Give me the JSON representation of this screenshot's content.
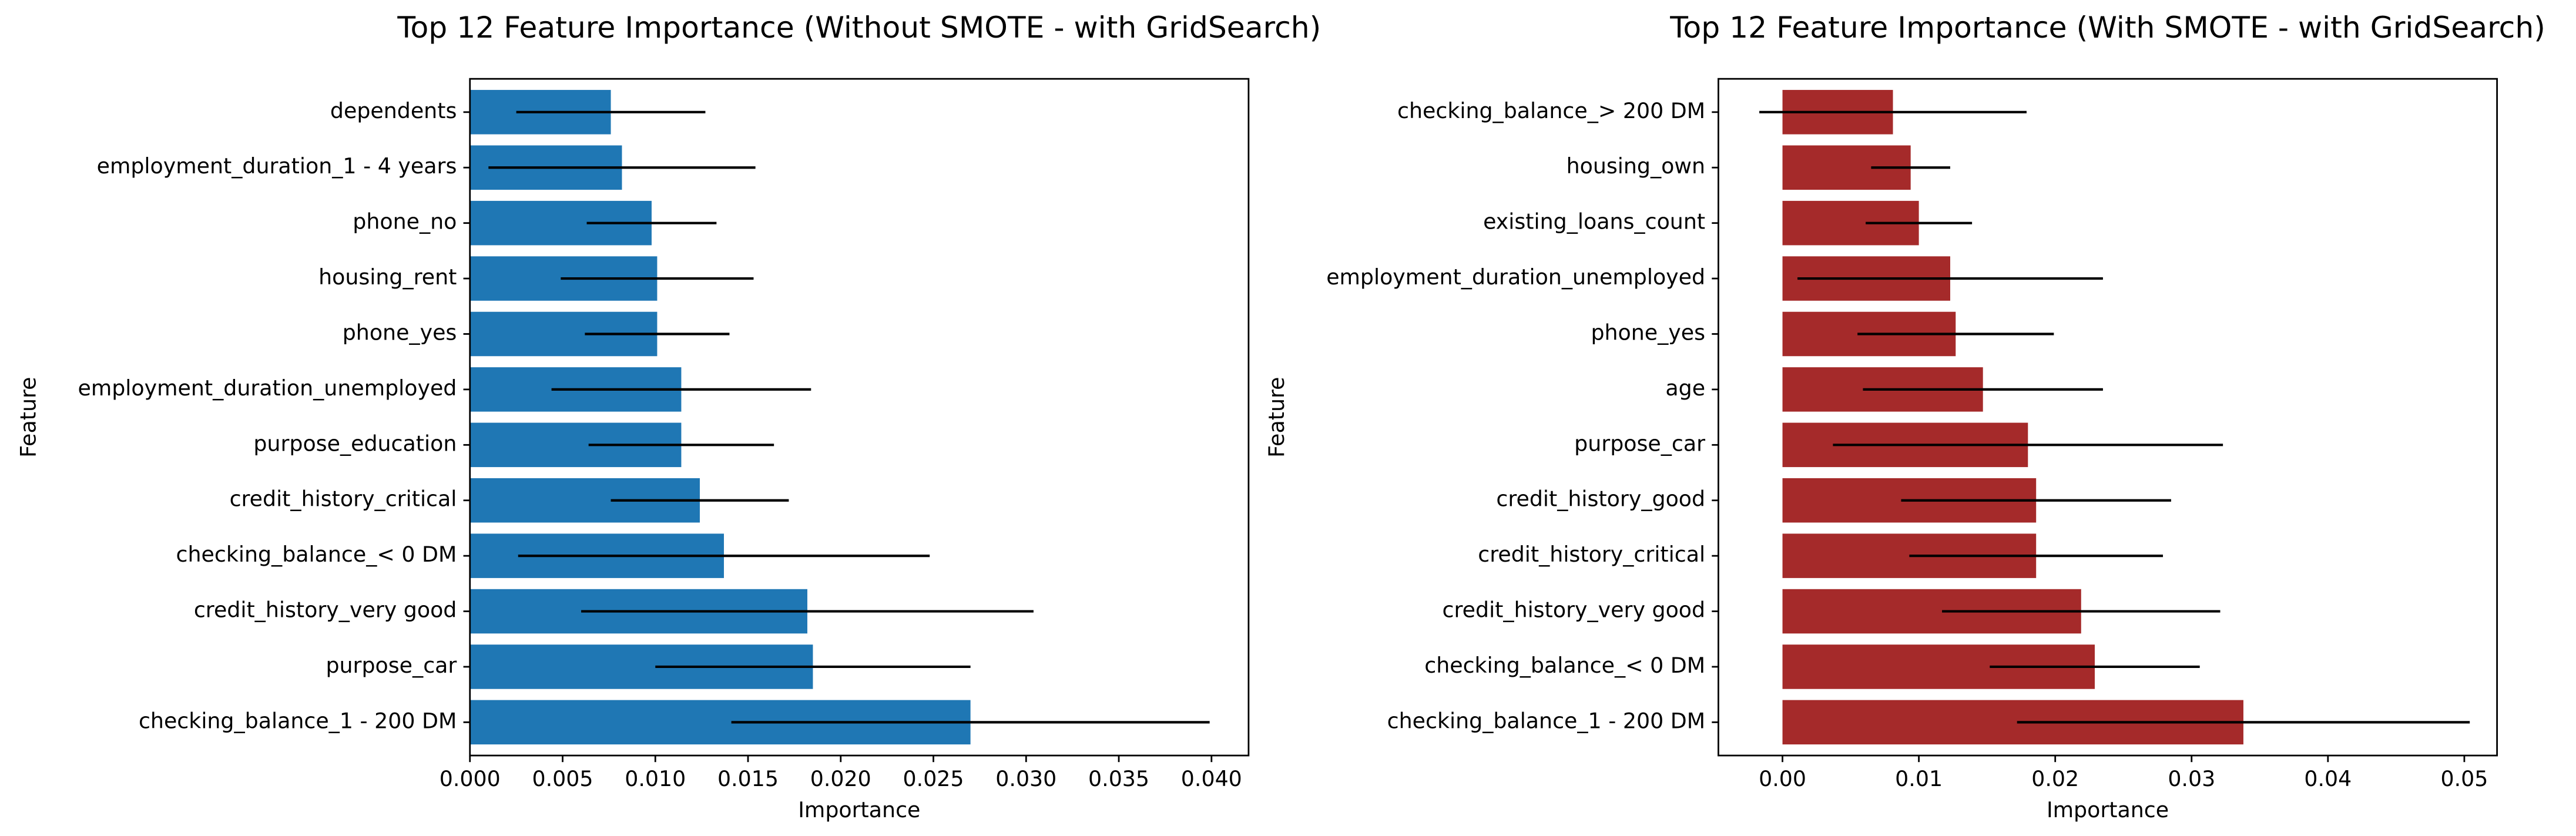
{
  "chart_data": [
    {
      "type": "barh",
      "title": "Top 12 Feature Importance (Without SMOTE - with GridSearch)",
      "xlabel": "Importance",
      "ylabel": "Feature",
      "categories": [
        "dependents",
        "employment_duration_1 - 4 years",
        "phone_no",
        "housing_rent",
        "phone_yes",
        "employment_duration_unemployed",
        "purpose_education",
        "credit_history_critical",
        "checking_balance_< 0 DM",
        "credit_history_very good",
        "purpose_car",
        "checking_balance_1 - 200 DM"
      ],
      "values": [
        0.0076,
        0.0082,
        0.0098,
        0.0101,
        0.0101,
        0.0114,
        0.0114,
        0.0124,
        0.0137,
        0.0182,
        0.0185,
        0.027
      ],
      "errors": [
        0.0051,
        0.0072,
        0.0035,
        0.0052,
        0.0039,
        0.007,
        0.005,
        0.0048,
        0.0111,
        0.0122,
        0.0085,
        0.0129
      ],
      "color": "#1f77b4",
      "xlim": [
        0,
        0.042
      ],
      "xticks": [
        {
          "value": 0,
          "label": "0.000"
        },
        {
          "value": 0.005,
          "label": "0.005"
        },
        {
          "value": 0.01,
          "label": "0.010"
        },
        {
          "value": 0.015,
          "label": "0.015"
        },
        {
          "value": 0.02,
          "label": "0.020"
        },
        {
          "value": 0.025,
          "label": "0.025"
        },
        {
          "value": 0.03,
          "label": "0.030"
        },
        {
          "value": 0.035,
          "label": "0.035"
        },
        {
          "value": 0.04,
          "label": "0.040"
        }
      ]
    },
    {
      "type": "barh",
      "title": "Top 12 Feature Importance (With SMOTE - with GridSearch)",
      "xlabel": "Importance",
      "ylabel": "Feature",
      "categories": [
        "checking_balance_> 200 DM",
        "housing_own",
        "existing_loans_count",
        "employment_duration_unemployed",
        "phone_yes",
        "age",
        "purpose_car",
        "credit_history_good",
        "credit_history_critical",
        "credit_history_very good",
        "checking_balance_< 0 DM",
        "checking_balance_1 - 200 DM"
      ],
      "values": [
        0.0081,
        0.0094,
        0.01,
        0.0123,
        0.0127,
        0.0147,
        0.018,
        0.0186,
        0.0186,
        0.0219,
        0.0229,
        0.0338
      ],
      "errors": [
        0.0098,
        0.0029,
        0.0039,
        0.0112,
        0.0072,
        0.0088,
        0.0143,
        0.0099,
        0.0093,
        0.0102,
        0.0077,
        0.0166
      ],
      "color": "#a52a2a",
      "xlim": [
        -0.0047,
        0.0524
      ],
      "xticks": [
        {
          "value": 0,
          "label": "0.00"
        },
        {
          "value": 0.01,
          "label": "0.01"
        },
        {
          "value": 0.02,
          "label": "0.02"
        },
        {
          "value": 0.03,
          "label": "0.03"
        },
        {
          "value": 0.04,
          "label": "0.04"
        },
        {
          "value": 0.05,
          "label": "0.05"
        }
      ]
    }
  ]
}
